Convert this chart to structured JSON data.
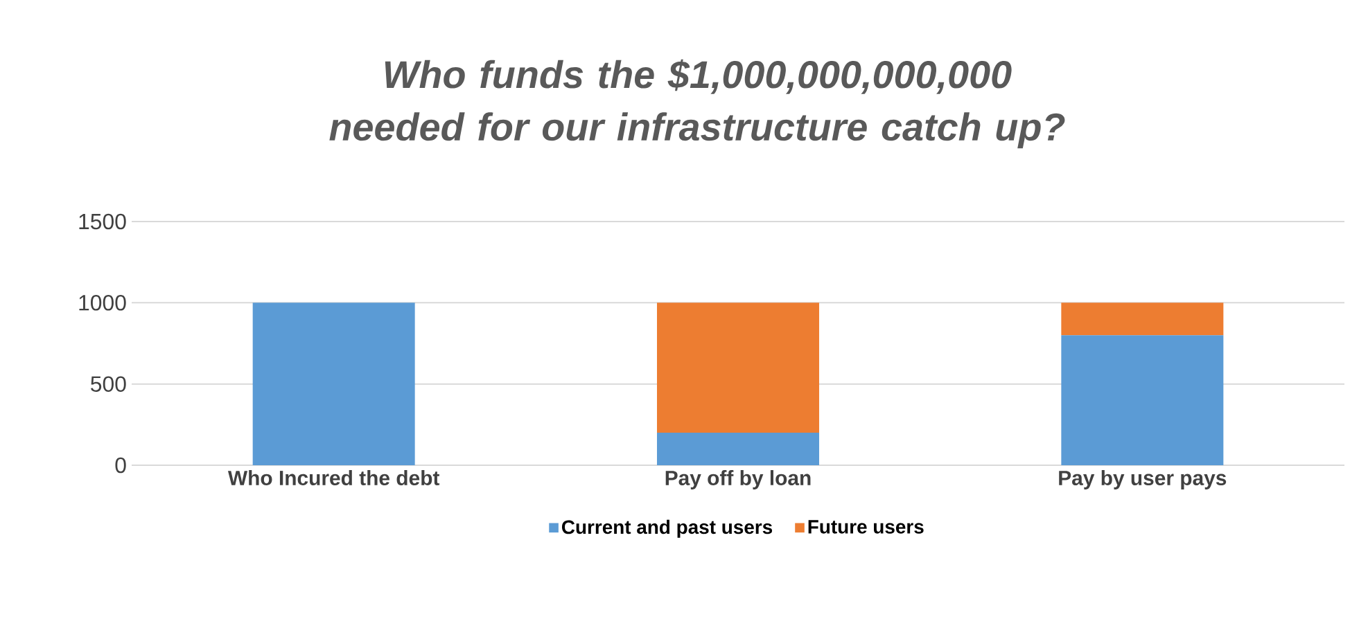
{
  "chart_data": {
    "type": "bar",
    "title": "Who funds the $1,000,000,000,000 needed for our infrastructure catch up?",
    "categories": [
      "Who Incured the debt",
      "Pay off  by loan",
      "Pay by user pays"
    ],
    "stacked": true,
    "series": [
      {
        "name": "Current and past users",
        "color": "#5b9bd5",
        "values": [
          1000,
          200,
          800
        ]
      },
      {
        "name": "Future users",
        "color": "#ed7d31",
        "values": [
          0,
          800,
          200
        ]
      }
    ],
    "ylim": [
      0,
      1500
    ],
    "yticks": [
      0,
      500,
      1000,
      1500
    ],
    "grid": "y",
    "legend": "bottom"
  }
}
